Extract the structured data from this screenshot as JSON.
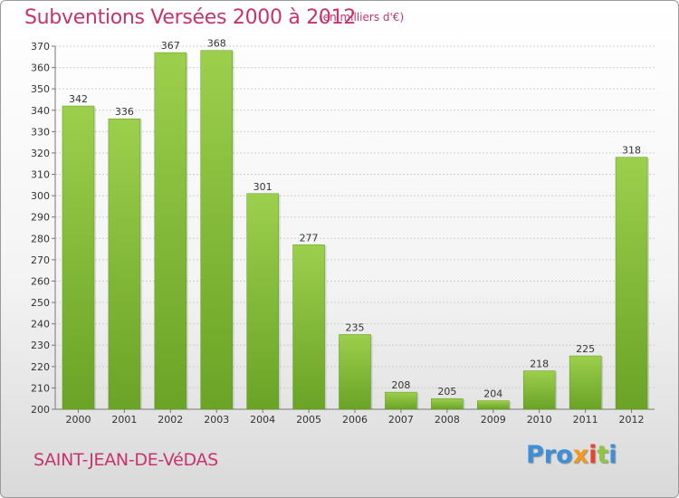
{
  "title": "Subventions Versées 2000 à 2012",
  "unit_note": "(en milliers d'€)",
  "commune": "SAINT-JEAN-DE-VéDAS",
  "logo": {
    "p1": "Pro",
    "p2": "x",
    "p3": "i",
    "p4": "t",
    "p5": "i"
  },
  "colors": {
    "bar_top": "#9ccf4c",
    "bar_bottom": "#6aa326",
    "title": "#c8336e"
  },
  "chart_data": {
    "type": "bar",
    "title": "Subventions Versées 2000 à 2012",
    "categories": [
      "2000",
      "2001",
      "2002",
      "2003",
      "2004",
      "2005",
      "2006",
      "2007",
      "2008",
      "2009",
      "2010",
      "2011",
      "2012"
    ],
    "values": [
      342,
      336,
      367,
      368,
      301,
      277,
      235,
      208,
      205,
      204,
      218,
      225,
      318
    ],
    "ylim": [
      200,
      370
    ],
    "yticks": [
      200,
      210,
      220,
      230,
      240,
      250,
      260,
      270,
      280,
      290,
      300,
      310,
      320,
      330,
      340,
      350,
      360,
      370
    ],
    "grid": true,
    "data_labels": true
  }
}
